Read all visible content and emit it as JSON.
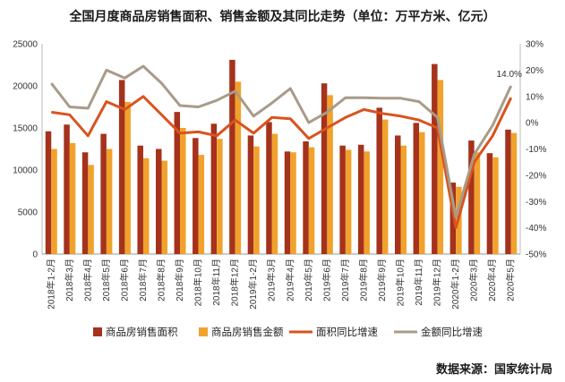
{
  "chart_data": {
    "type": "bar",
    "title": "全国月度商品房销售面积、销售金额及其同比走势（单位：万平方米、亿元）",
    "categories": [
      "2018年1-2月",
      "2018年3月",
      "2018年4月",
      "2018年5月",
      "2018年6月",
      "2018年7月",
      "2018年8月",
      "2018年9月",
      "2018年10月",
      "2018年11月",
      "2018年12月",
      "2019年1-2月",
      "2019年3月",
      "2019年4月",
      "2019年5月",
      "2019年6月",
      "2019年7月",
      "2019年8月",
      "2019年9月",
      "2019年10月",
      "2019年11月",
      "2019年12月",
      "2020年1-2月",
      "2020年3月",
      "2020年4月",
      "2020年5月"
    ],
    "left_axis": {
      "min": 0,
      "max": 25000,
      "ticks": [
        0,
        5000,
        10000,
        15000,
        20000,
        25000
      ]
    },
    "right_axis": {
      "min": -50,
      "max": 30,
      "ticks": [
        "-50%",
        "-40%",
        "-30%",
        "-20%",
        "-10%",
        "0%",
        "10%",
        "20%",
        "30%"
      ]
    },
    "series": [
      {
        "name": "商品房销售面积",
        "type": "bar",
        "axis": "left",
        "color": "#a5321c",
        "values": [
          14600,
          15400,
          12100,
          14300,
          20700,
          12900,
          12500,
          16900,
          13800,
          15500,
          23100,
          14100,
          15700,
          12200,
          13400,
          20300,
          12900,
          13000,
          17400,
          14100,
          15600,
          22600,
          8500,
          13500,
          12000,
          14800
        ]
      },
      {
        "name": "商品房销售金额",
        "type": "bar",
        "axis": "left",
        "color": "#f1a22c",
        "values": [
          12500,
          13200,
          10600,
          12500,
          18100,
          11400,
          11100,
          15000,
          11800,
          13700,
          20500,
          12800,
          14300,
          12100,
          12700,
          18900,
          12400,
          12200,
          16000,
          12900,
          14500,
          20700,
          8000,
          12100,
          11500,
          14400
        ]
      },
      {
        "name": "面积同比增速",
        "type": "line",
        "axis": "right",
        "color": "#d9531e",
        "values": [
          4,
          3,
          -5,
          8,
          5,
          10,
          3,
          -4,
          -3.5,
          -5,
          1,
          -4,
          2,
          1.5,
          -6,
          -2,
          2,
          5,
          3.5,
          2.5,
          1,
          -2,
          -40,
          -15,
          -5,
          9.5
        ]
      },
      {
        "name": "金额同比增速",
        "type": "line",
        "axis": "right",
        "color": "#a89b88",
        "values": [
          15,
          6,
          5.5,
          20,
          17,
          21.5,
          15,
          6.5,
          6,
          8.5,
          12,
          2.5,
          7.5,
          13,
          0,
          4,
          9.5,
          9.5,
          9.3,
          9.3,
          8,
          2,
          -36,
          -12,
          -1,
          14.0
        ]
      }
    ],
    "annotation": "14.0%",
    "legend": "bottom"
  },
  "footer": {
    "source": "数据来源：国家统计局"
  }
}
